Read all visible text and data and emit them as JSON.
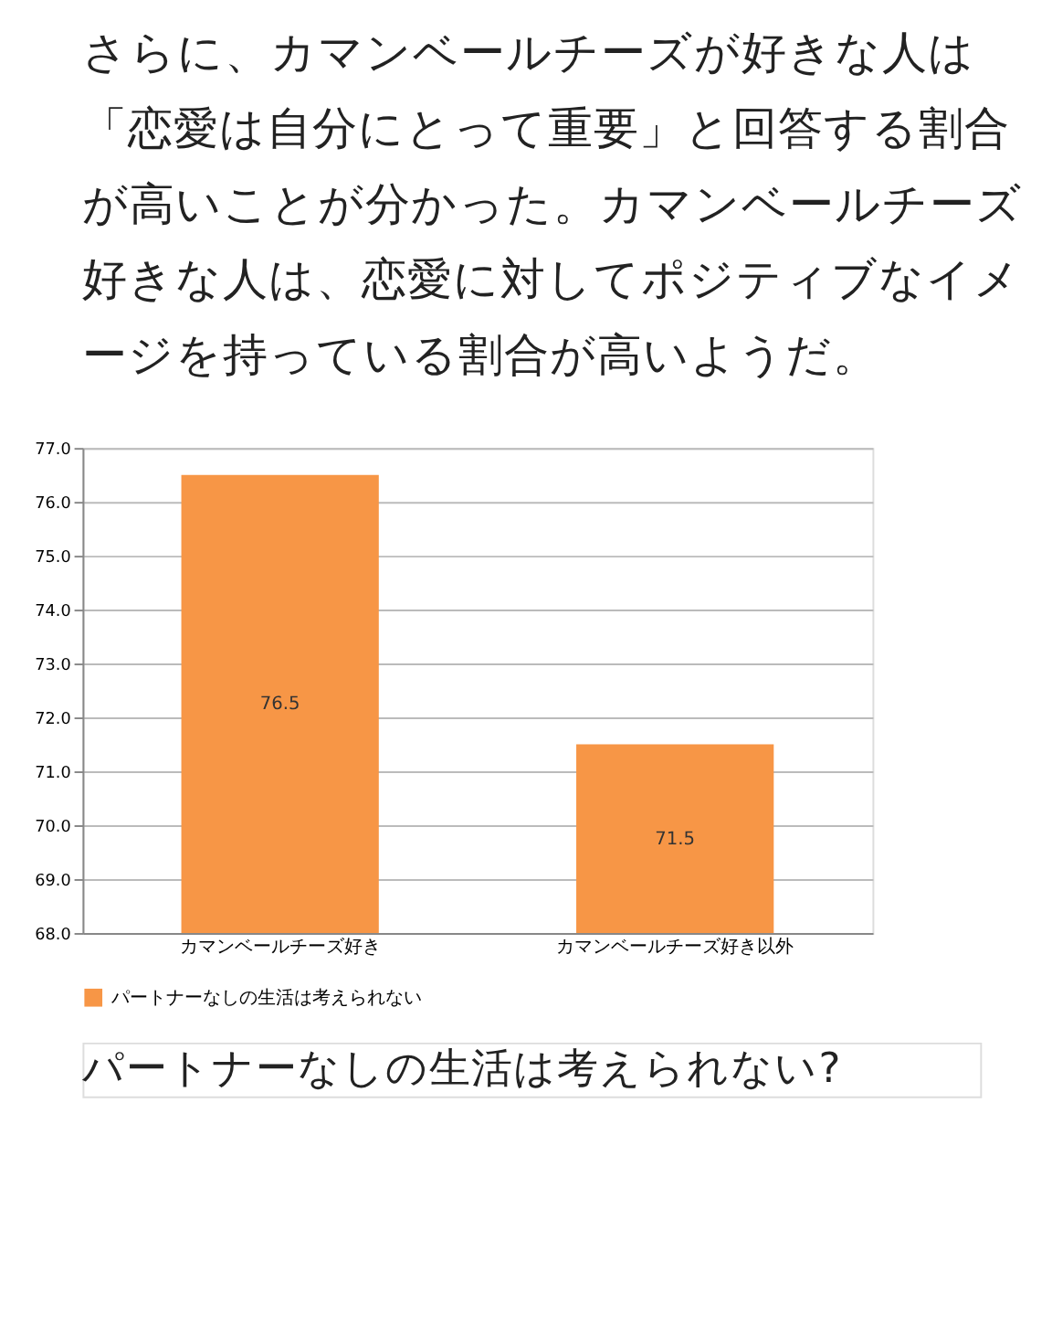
{
  "chart_data": {
    "type": "bar",
    "title": "さらに、カマンベールチーズが好きな人は「恋愛は自分にとって重要」と回答する割合が高いことが分かった。カマンベールチーズ好きな人は、恋愛に対してポジティブなイメージを持っている割合が高いようだ。",
    "categories": [
      "カマンベールチーズ好き",
      "カマンベールチーズ好き以外"
    ],
    "series": [
      {
        "name": "パートナーなしの生活は考えられない",
        "color": "#f79646",
        "values": [
          76.5,
          71.5
        ]
      }
    ],
    "ylim": [
      68,
      77
    ],
    "yticks": [
      {
        "value": 68,
        "label": "68.0"
      },
      {
        "value": 69,
        "label": "69.0"
      },
      {
        "value": 70,
        "label": "70.0"
      },
      {
        "value": 71,
        "label": "71.0"
      },
      {
        "value": 72,
        "label": "72.0"
      },
      {
        "value": 73,
        "label": "73.0"
      },
      {
        "value": 74,
        "label": "74.0"
      },
      {
        "value": 75,
        "label": "75.0"
      },
      {
        "value": 76,
        "label": "76.0"
      },
      {
        "value": 77,
        "label": "77.0"
      }
    ],
    "grid": "y",
    "legend": "bottom",
    "data_labels": true,
    "annotations": [
      "パートナーなしの生活は考えられない?"
    ]
  }
}
